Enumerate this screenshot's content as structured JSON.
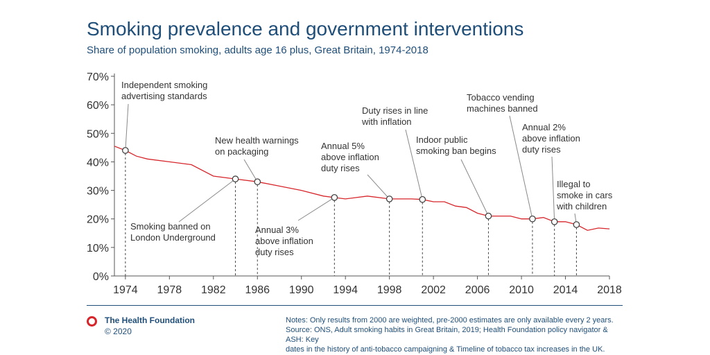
{
  "header": {
    "title": "Smoking prevalence and government interventions",
    "subtitle": "Share of population smoking, adults age 16 plus, Great Britain, 1974-2018"
  },
  "colors": {
    "line": "#d7262b",
    "title": "#1f4e79",
    "text": "#333333",
    "axis": "#555555"
  },
  "chart_data": {
    "type": "line",
    "title": "Smoking prevalence and government interventions",
    "subtitle": "Share of population smoking, adults age 16 plus, Great Britain, 1974-2018",
    "xlabel": "",
    "ylabel": "",
    "xlim": [
      1973,
      2018
    ],
    "ylim": [
      0,
      70
    ],
    "x_ticks": [
      1974,
      1978,
      1982,
      1986,
      1990,
      1994,
      1998,
      2002,
      2006,
      2010,
      2014,
      2018
    ],
    "y_ticks": [
      0,
      10,
      20,
      30,
      40,
      50,
      60,
      70
    ],
    "y_tick_labels": [
      "0%",
      "10%",
      "20%",
      "30%",
      "40%",
      "50%",
      "60%",
      "70%"
    ],
    "grid": false,
    "series": [
      {
        "x": [
          1973,
          1974,
          1975,
          1976,
          1978,
          1980,
          1982,
          1984,
          1986,
          1988,
          1990,
          1992,
          1993,
          1994,
          1996,
          1998,
          2000,
          2001,
          2002,
          2003,
          2004,
          2005,
          2006,
          2007,
          2008,
          2009,
          2010,
          2011,
          2012,
          2013,
          2014,
          2015,
          2016,
          2017,
          2018
        ],
        "values": [
          45.5,
          44,
          42,
          41,
          40,
          39,
          35,
          34,
          33,
          31.5,
          30,
          28,
          27.5,
          27,
          28,
          27,
          27,
          26.8,
          26,
          26,
          24.5,
          24,
          22,
          21,
          21,
          21,
          20,
          20,
          20.5,
          19,
          19,
          18,
          16,
          16.8,
          16.5
        ]
      }
    ],
    "annotations": [
      {
        "year": 1974,
        "value": 44,
        "lines": [
          "Independent smoking",
          "advertising standards"
        ]
      },
      {
        "year": 1984,
        "value": 34,
        "lines": [
          "Smoking banned on",
          "London Underground"
        ]
      },
      {
        "year": 1986,
        "value": 33,
        "lines": [
          "New health warnings",
          "on packaging"
        ]
      },
      {
        "year": 1993,
        "value": 27.5,
        "lines": [
          "Annual 3%",
          "above inflation",
          "duty rises"
        ]
      },
      {
        "year": 1998,
        "value": 27,
        "lines": [
          "Annual 5%",
          "above inflation",
          "duty rises"
        ]
      },
      {
        "year": 2001,
        "value": 26.8,
        "lines": [
          "Duty rises in line",
          "with inflation"
        ]
      },
      {
        "year": 2007,
        "value": 21,
        "lines": [
          "Indoor public",
          "smoking ban begins"
        ]
      },
      {
        "year": 2011,
        "value": 20,
        "lines": [
          "Tobacco vending",
          "machines banned"
        ]
      },
      {
        "year": 2013,
        "value": 19,
        "lines": [
          "Annual 2%",
          "above inflation",
          "duty rises"
        ]
      },
      {
        "year": 2015,
        "value": 18,
        "lines": [
          "Illegal to",
          "smoke in cars",
          "with children"
        ]
      }
    ]
  },
  "footer": {
    "brand_name": "The Health Foundation",
    "copyright": "© 2020",
    "notes_line1": "Notes: Only results from 2000 are weighted, pre-2000 estimates are only available every 2 years.",
    "notes_line2": "Source: ONS, Adult smoking habits in Great Britain, 2019; Health Foundation policy navigator & ASH: Key",
    "notes_line3": "dates in the history of anti-tobacco campaigning & Timeline of tobacco tax increases in the UK."
  }
}
